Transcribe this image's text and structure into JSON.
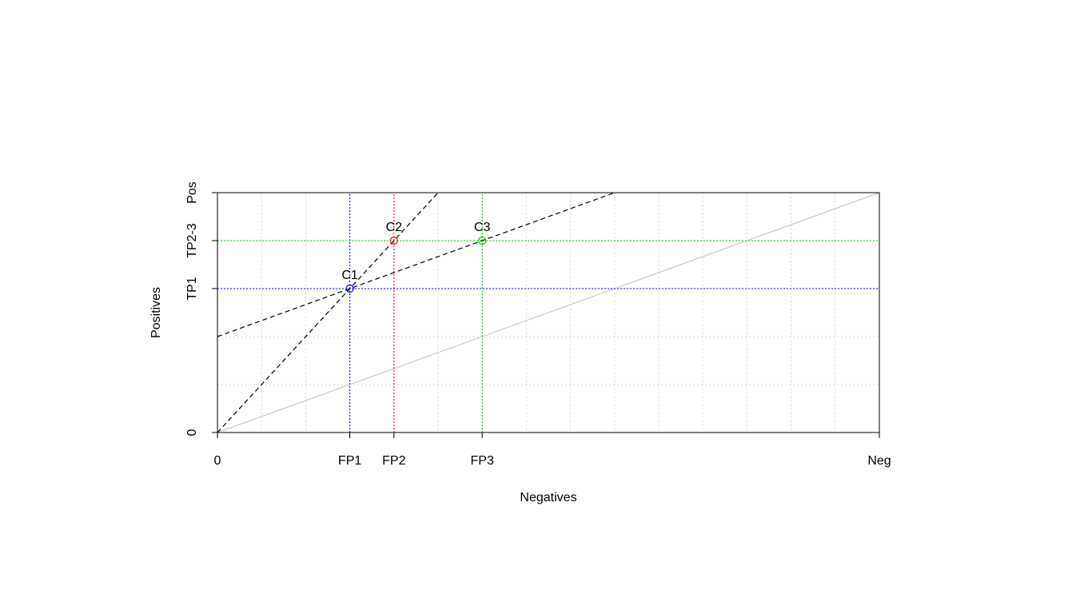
{
  "chart_data": {
    "type": "scatter",
    "title": "",
    "xlabel": "Negatives",
    "ylabel": "Positives",
    "xlim": [
      0,
      15
    ],
    "ylim": [
      0,
      5
    ],
    "x_ticks": [
      {
        "value": 0,
        "label": "0"
      },
      {
        "value": 3,
        "label": "FP1"
      },
      {
        "value": 4,
        "label": "FP2"
      },
      {
        "value": 6,
        "label": "FP3"
      },
      {
        "value": 15,
        "label": "Neg"
      }
    ],
    "y_ticks": [
      {
        "value": 0,
        "label": "0"
      },
      {
        "value": 3,
        "label": "TP1"
      },
      {
        "value": 4,
        "label": "TP2-3"
      },
      {
        "value": 5,
        "label": "Pos"
      }
    ],
    "grid": true,
    "grid_x_step": 1,
    "grid_y_step": 1,
    "points": [
      {
        "label": "C1",
        "x": 3,
        "y": 3,
        "color": "#0000ff"
      },
      {
        "label": "C2",
        "x": 4,
        "y": 4,
        "color": "#ff0000"
      },
      {
        "label": "C3",
        "x": 6,
        "y": 4,
        "color": "#00cc00"
      }
    ],
    "reference_lines": [
      {
        "kind": "vertical",
        "x": 3,
        "color": "#0000ff"
      },
      {
        "kind": "vertical",
        "x": 4,
        "color": "#ff0000"
      },
      {
        "kind": "vertical",
        "x": 6,
        "color": "#00cc00"
      },
      {
        "kind": "horizontal",
        "y": 3,
        "color": "#0000ff"
      },
      {
        "kind": "horizontal",
        "y": 4,
        "color": "#00cc00"
      }
    ],
    "isometric_lines": [
      {
        "from": [
          0,
          0
        ],
        "to": [
          5,
          5
        ],
        "style": "dashed",
        "color": "#000000"
      },
      {
        "from": [
          0,
          2
        ],
        "to": [
          9,
          5
        ],
        "style": "dashed",
        "color": "#000000"
      }
    ],
    "diagonal": {
      "from": [
        0,
        0
      ],
      "to": [
        15,
        5
      ],
      "color": "#c0c0c0"
    }
  }
}
